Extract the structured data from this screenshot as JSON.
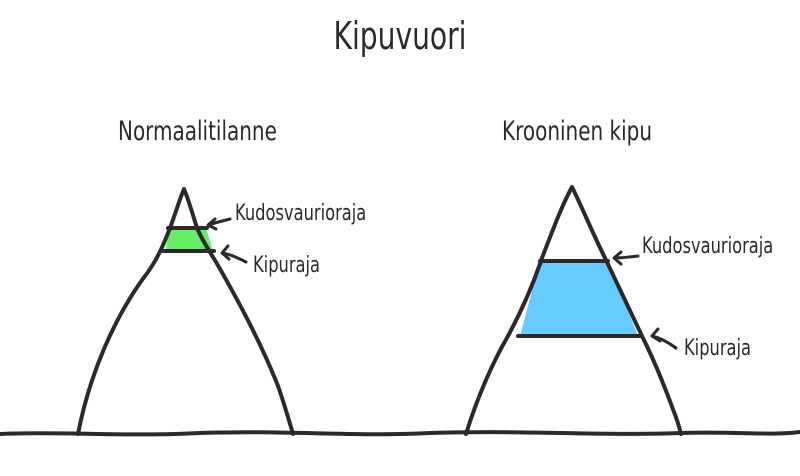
{
  "title": "Kipuvuori",
  "panels": [
    {
      "subtitle": "Normaalitilanne",
      "upper_label": "Kudosvaurioraja",
      "lower_label": "Kipuraja",
      "band_color": "#66ee66"
    },
    {
      "subtitle": "Krooninen kipu",
      "upper_label": "Kudosvaurioraja",
      "lower_label": "Kipuraja",
      "band_color": "#66ccff"
    }
  ],
  "colors": {
    "ink": "#2a2a2a",
    "background": "#ffffff"
  }
}
